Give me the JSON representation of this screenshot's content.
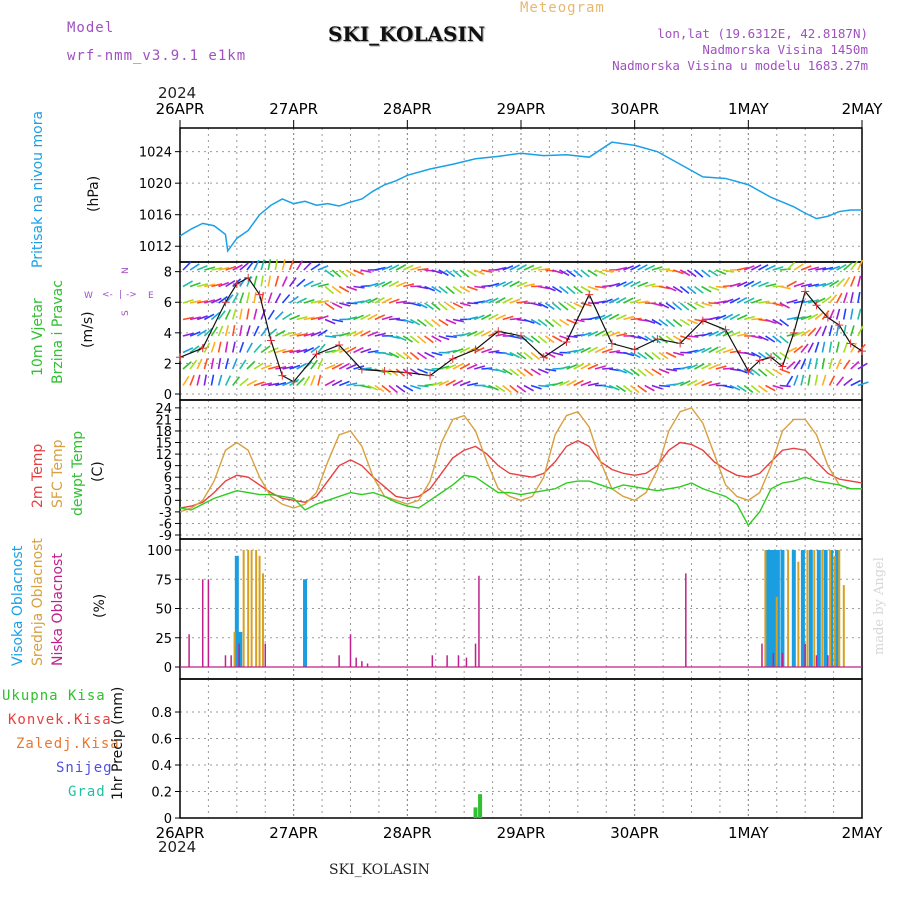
{
  "header": {
    "model_label": "Model",
    "model_name": "wrf-nmm_v3.9.1  e1km",
    "station": "SKI_KOLASIN",
    "meteogram": "Meteogram",
    "lonlat": "lon,lat (19.6312E, 42.8187N)",
    "altitude": "Nadmorska Visina 1450m",
    "model_altitude": "Nadmorska Visina u modelu 1683.27m",
    "year": "2024",
    "footer_station": "SKI_KOLASIN",
    "credit": "made by Angel"
  },
  "time_axis": {
    "labels": [
      "26APR",
      "27APR",
      "28APR",
      "29APR",
      "30APR",
      "1MAY",
      "2MAY"
    ],
    "year": "2024"
  },
  "panel_labels": {
    "pressure": {
      "name": "Pritisak na nivou mora",
      "unit": "(hPa)"
    },
    "wind": {
      "line1": "10m Vjetar",
      "line2": "Brzina i Pravac",
      "unit": "(m/s)",
      "rose": [
        "N",
        "E",
        "S",
        "W"
      ]
    },
    "temp": {
      "line1": "2m Temp",
      "line2": "SFC Temp",
      "line3": "dewpt Temp",
      "unit": "(C)"
    },
    "cloud": {
      "line1": "Visoka Oblacnost",
      "line2": "Srednja Oblacnost",
      "line3": "Niska Oblacnost",
      "unit": "(%)"
    },
    "precip": {
      "legend": [
        "Ukupna Kisa",
        "Konvek.Kisa",
        "Zaledj.Kisa",
        "Snijeg",
        "Grad"
      ],
      "unit": "1hr Precip (mm)"
    }
  },
  "colors": {
    "pressure": "#1aa0e6",
    "wind_line": "#111111",
    "wind_cross": "#e6303a",
    "t2": "#e84040",
    "sfc": "#d8a040",
    "dew": "#2ecc20",
    "high_cloud": "#1a9ee0",
    "mid_cloud": "#d8a020",
    "low_cloud": "#c0208a",
    "rain": "#30c030",
    "conv": "#e84040",
    "frz": "#e87830",
    "snow": "#5050e0",
    "hail": "#20c0a0"
  },
  "chart_data": [
    {
      "type": "line",
      "name": "pressure",
      "ylim": [
        1010,
        1027
      ],
      "yticks": [
        1012,
        1016,
        1020,
        1024
      ],
      "ylabel": "(hPa)",
      "x_days": [
        0,
        0.1,
        0.2,
        0.3,
        0.4,
        0.42,
        0.5,
        0.6,
        0.7,
        0.8,
        0.9,
        1.0,
        1.1,
        1.2,
        1.3,
        1.4,
        1.5,
        1.6,
        1.7,
        1.8,
        1.9,
        2.0,
        2.2,
        2.4,
        2.6,
        2.8,
        3.0,
        3.2,
        3.4,
        3.6,
        3.8,
        4.0,
        4.2,
        4.4,
        4.6,
        4.8,
        5.0,
        5.2,
        5.4,
        5.5,
        5.6,
        5.7,
        5.8,
        5.9,
        6.0
      ],
      "values": [
        1013.3,
        1014.2,
        1014.9,
        1014.6,
        1013.5,
        1011.4,
        1013,
        1014,
        1016,
        1017.2,
        1018,
        1017.4,
        1017.7,
        1017.2,
        1017.4,
        1017.1,
        1017.6,
        1018,
        1019,
        1019.8,
        1020.3,
        1021,
        1021.8,
        1022.4,
        1023.1,
        1023.4,
        1023.8,
        1023.5,
        1023.6,
        1023.3,
        1025.2,
        1024.8,
        1024,
        1022.4,
        1020.8,
        1020.6,
        1019.8,
        1018.2,
        1017,
        1016.2,
        1015.5,
        1015.8,
        1016.4,
        1016.6,
        1016.6
      ]
    },
    {
      "type": "line",
      "name": "wind_speed",
      "ylim": [
        0,
        8.5
      ],
      "yticks": [
        0,
        2,
        4,
        6,
        8
      ],
      "ylabel": "(m/s)",
      "x_days": [
        0,
        0.2,
        0.4,
        0.5,
        0.6,
        0.7,
        0.8,
        0.9,
        1.0,
        1.2,
        1.4,
        1.6,
        1.8,
        2.0,
        2.2,
        2.4,
        2.6,
        2.8,
        3.0,
        3.2,
        3.4,
        3.6,
        3.8,
        4.0,
        4.2,
        4.4,
        4.6,
        4.8,
        5.0,
        5.1,
        5.2,
        5.3,
        5.4,
        5.5,
        5.6,
        5.7,
        5.8,
        5.9,
        6.0
      ],
      "values": [
        2.4,
        3,
        6,
        7.2,
        7.6,
        6.5,
        3.5,
        1.2,
        0.8,
        2.6,
        3.2,
        1.6,
        1.5,
        1.4,
        1.2,
        2.3,
        2.9,
        4.1,
        3.8,
        2.4,
        3.4,
        6.5,
        3.3,
        2.9,
        3.6,
        3.3,
        4.8,
        4.2,
        1.5,
        2.2,
        2.4,
        1.8,
        4,
        6.7,
        5.8,
        5,
        4.5,
        3.3,
        2.8
      ]
    },
    {
      "type": "line",
      "name": "temperature",
      "ylim": [
        -9,
        25
      ],
      "yticks": [
        -9,
        -6,
        -3,
        0,
        3,
        6,
        9,
        12,
        15,
        18,
        21,
        24
      ],
      "ylabel": "(C)",
      "x_days": [
        0,
        0.1,
        0.2,
        0.3,
        0.4,
        0.5,
        0.6,
        0.7,
        0.8,
        0.9,
        1.0,
        1.1,
        1.2,
        1.3,
        1.4,
        1.5,
        1.6,
        1.7,
        1.8,
        1.9,
        2.0,
        2.1,
        2.2,
        2.3,
        2.4,
        2.5,
        2.6,
        2.7,
        2.8,
        2.9,
        3.0,
        3.1,
        3.2,
        3.3,
        3.4,
        3.5,
        3.6,
        3.7,
        3.8,
        3.9,
        4.0,
        4.1,
        4.2,
        4.3,
        4.4,
        4.5,
        4.6,
        4.7,
        4.8,
        4.9,
        5.0,
        5.1,
        5.2,
        5.3,
        5.4,
        5.5,
        5.6,
        5.7,
        5.8,
        5.9,
        6.0
      ],
      "series": [
        {
          "name": "2m Temp",
          "values": [
            -2,
            -1.5,
            -0.5,
            2,
            5,
            6.5,
            6,
            4,
            2,
            0.5,
            0,
            -0.5,
            1,
            5,
            9,
            10.5,
            9,
            6,
            3.5,
            1,
            0.5,
            1,
            3,
            7,
            11,
            13,
            14,
            12,
            9,
            7,
            6.5,
            6,
            7,
            10,
            14,
            15.5,
            14,
            10,
            8,
            7,
            6.5,
            7,
            9,
            13,
            15,
            14.5,
            13,
            10,
            8,
            6.5,
            6,
            7,
            10,
            13,
            13.5,
            13,
            10,
            7,
            5.5,
            5,
            4.5
          ]
        },
        {
          "name": "SFC Temp",
          "values": [
            -3,
            -2,
            0,
            5,
            13,
            15,
            13,
            6,
            1,
            -1,
            -2,
            -1,
            2,
            10,
            17,
            18,
            14,
            6,
            1,
            0,
            -1,
            0,
            5,
            15,
            21,
            22,
            18,
            10,
            3,
            1,
            0,
            1,
            6,
            17,
            22,
            23,
            19,
            10,
            3,
            1,
            0,
            2,
            8,
            18,
            23,
            24,
            20,
            12,
            4,
            1,
            0,
            2,
            9,
            18,
            21,
            21,
            17,
            9,
            4,
            3,
            3
          ]
        },
        {
          "name": "dewpt Temp",
          "values": [
            -2,
            -2.5,
            -1,
            0.5,
            1.5,
            2.5,
            2,
            1.5,
            1.5,
            1,
            0.5,
            -2.5,
            -1,
            0,
            1,
            2,
            1.5,
            2,
            1,
            -0.5,
            -1.5,
            -2,
            0,
            2,
            4,
            6.5,
            6,
            4,
            2,
            2,
            1.5,
            2,
            2.5,
            3,
            4.5,
            5,
            5,
            4,
            3,
            4,
            3.5,
            3,
            2.5,
            3,
            3.5,
            4.5,
            3,
            2,
            1,
            -1,
            -6.5,
            -3,
            3,
            4.5,
            5,
            6,
            5,
            4.5,
            4,
            3,
            3
          ]
        }
      ]
    },
    {
      "type": "bar",
      "name": "cloud_cover",
      "ylim": [
        0,
        100
      ],
      "yticks": [
        0,
        25,
        50,
        75,
        100
      ],
      "ylabel": "(%)",
      "series": [
        {
          "name": "Visoka Oblacnost",
          "x_days": [
            0.5,
            0.53,
            1.1,
            5.17,
            5.2,
            5.23,
            5.26,
            5.3,
            5.4,
            5.48,
            5.55,
            5.62,
            5.68,
            5.73,
            5.78
          ],
          "values": [
            95,
            30,
            75,
            100,
            100,
            100,
            100,
            100,
            100,
            100,
            100,
            100,
            100,
            100,
            100
          ]
        },
        {
          "name": "Srednja Oblacnost",
          "x_days": [
            0.48,
            0.56,
            0.6,
            0.63,
            0.67,
            0.7,
            0.73,
            5.15,
            5.25,
            5.35,
            5.44,
            5.52,
            5.58,
            5.65,
            5.72,
            5.76,
            5.8,
            5.84
          ],
          "values": [
            30,
            100,
            100,
            100,
            100,
            95,
            80,
            100,
            60,
            100,
            90,
            100,
            100,
            100,
            100,
            95,
            100,
            70
          ]
        },
        {
          "name": "Niska Oblacnost",
          "x_days": [
            0.08,
            0.2,
            0.25,
            0.4,
            0.45,
            0.52,
            0.75,
            1.4,
            1.5,
            1.55,
            1.6,
            1.65,
            2.22,
            2.35,
            2.45,
            2.52,
            2.6,
            2.63,
            4.45,
            5.12,
            5.22,
            5.3,
            5.5,
            5.6,
            5.7
          ],
          "values": [
            28,
            75,
            75,
            10,
            10,
            20,
            20,
            10,
            28,
            8,
            5,
            3,
            10,
            10,
            10,
            8,
            20,
            78,
            80,
            20,
            12,
            12,
            20,
            10,
            10
          ]
        }
      ]
    },
    {
      "type": "bar",
      "name": "precipitation",
      "ylim": [
        0,
        1.0
      ],
      "yticks": [
        0,
        0.2,
        0.4,
        0.6,
        0.8
      ],
      "ylabel": "1hr Precip (mm)",
      "series": [
        {
          "name": "Ukupna Kisa",
          "x_days": [
            2.6,
            2.64
          ],
          "values": [
            0.08,
            0.18
          ]
        }
      ]
    }
  ]
}
